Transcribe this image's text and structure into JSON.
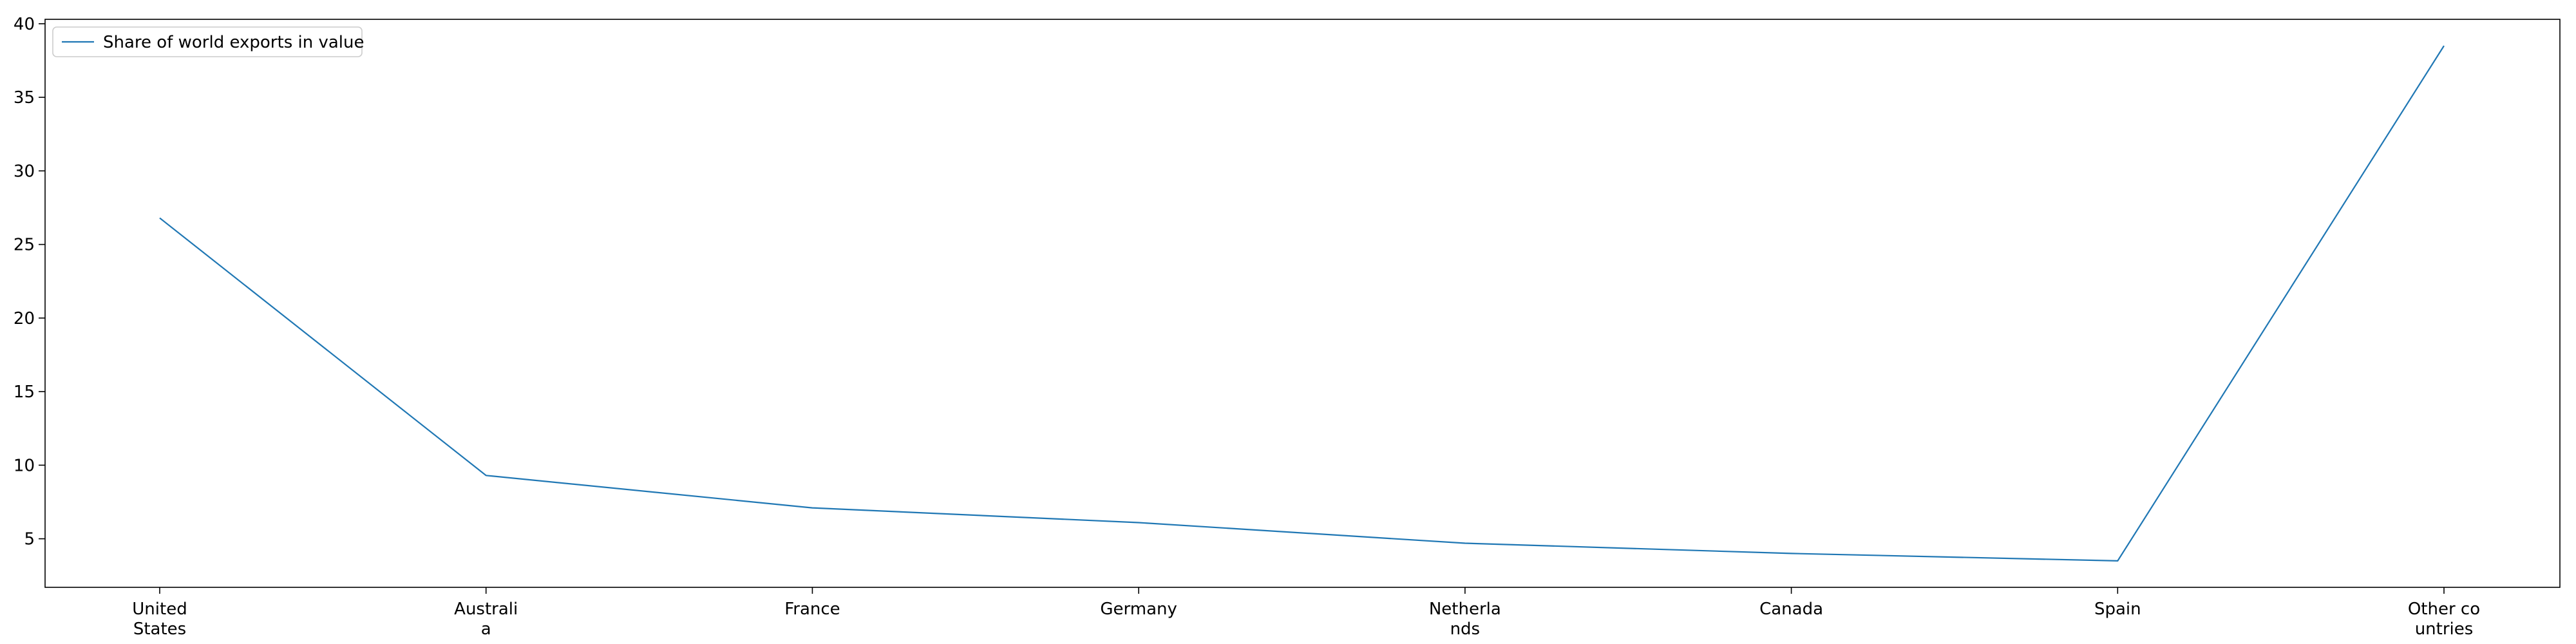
{
  "chart_data": {
    "type": "line",
    "categories": [
      [
        "United",
        "States"
      ],
      [
        "Australi",
        "a"
      ],
      [
        "France"
      ],
      [
        "Germany"
      ],
      [
        "Netherla",
        "nds"
      ],
      [
        "Canada"
      ],
      [
        "Spain"
      ],
      [
        "Other co",
        "untries"
      ]
    ],
    "series": [
      {
        "name": "Share of world exports in value",
        "values": [
          26.8,
          9.3,
          7.1,
          6.1,
          4.7,
          4.0,
          3.5,
          38.5
        ],
        "color": "#1f77b4"
      }
    ],
    "yticks": [
      5,
      10,
      15,
      20,
      25,
      30,
      35,
      40
    ],
    "ylim": [
      1.7,
      40.3
    ],
    "grid": false,
    "legend_position": "top-left"
  }
}
